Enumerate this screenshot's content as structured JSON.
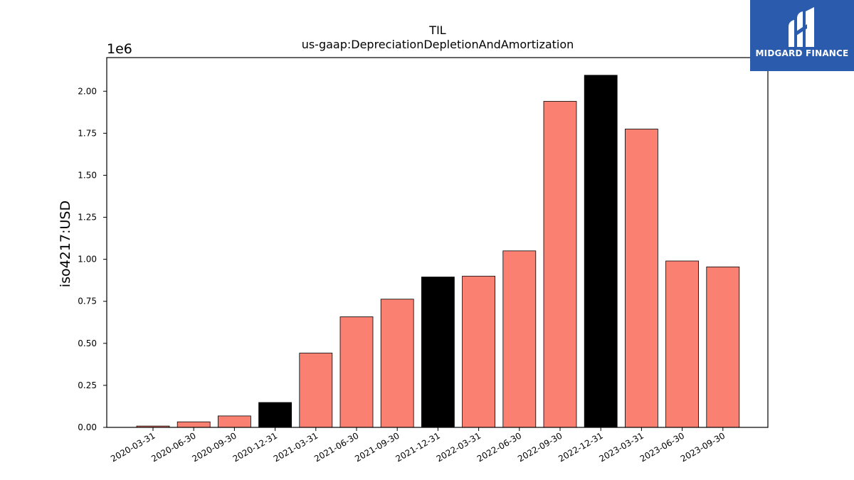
{
  "logo": {
    "text": "MIDGARD FINANCE",
    "background": "#2b5bad"
  },
  "chart_data": {
    "type": "bar",
    "title": "TIL",
    "subtitle": "us-gaap:DepreciationDepletionAndAmortization",
    "ylabel": "iso4217:USD",
    "xlabel": "",
    "y_multiplier": "1e6",
    "ylim": [
      0,
      2.2
    ],
    "yticks": [
      "0.00",
      "0.25",
      "0.50",
      "0.75",
      "1.00",
      "1.25",
      "1.50",
      "1.75",
      "2.00"
    ],
    "categories": [
      "2020-03-31",
      "2020-06-30",
      "2020-09-30",
      "2020-12-31",
      "2021-03-31",
      "2021-06-30",
      "2021-09-30",
      "2021-12-31",
      "2022-03-31",
      "2022-06-30",
      "2022-09-30",
      "2022-12-31",
      "2023-03-31",
      "2023-06-30",
      "2023-09-30"
    ],
    "values": [
      0.008,
      0.033,
      0.068,
      0.148,
      0.442,
      0.658,
      0.763,
      0.895,
      0.9,
      1.05,
      1.94,
      2.095,
      1.775,
      0.99,
      0.955
    ],
    "colors": {
      "quarter": "#fa8072",
      "year_end": "#000000"
    },
    "bar_colors": [
      "quarter",
      "quarter",
      "quarter",
      "year_end",
      "quarter",
      "quarter",
      "quarter",
      "year_end",
      "quarter",
      "quarter",
      "quarter",
      "year_end",
      "quarter",
      "quarter",
      "quarter"
    ],
    "grid": false
  }
}
